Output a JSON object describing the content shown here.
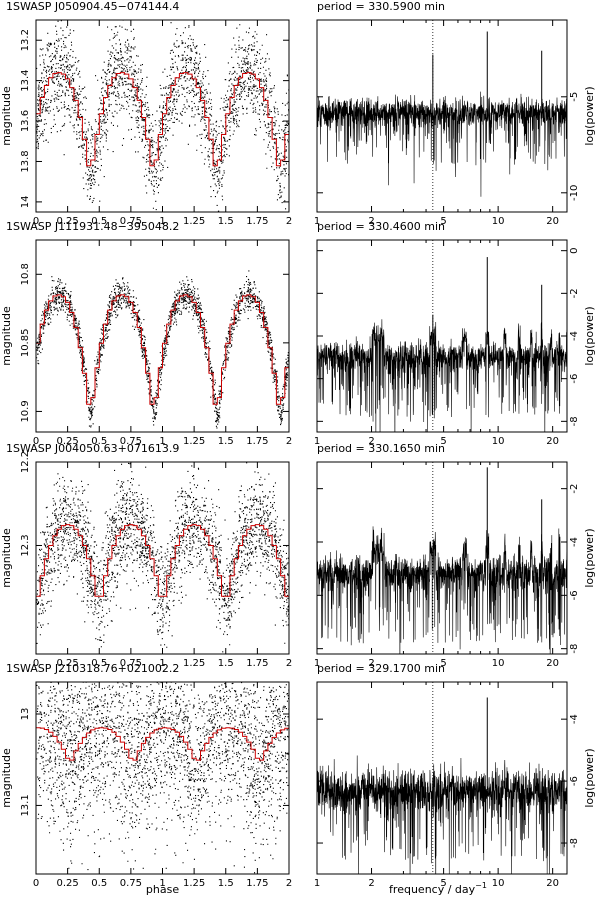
{
  "chart_data": [
    {
      "type": "scatter",
      "title": "1SWASP J050904.45−074144.4",
      "xlabel": "phase",
      "ylabel": "magnitude",
      "xlim": [
        0,
        2
      ],
      "ylim": [
        14.05,
        13.1
      ],
      "y_inverted": true,
      "xticks": [
        "0",
        "0.25",
        "0.5",
        "0.75",
        "1",
        "1.25",
        "1.5",
        "1.75",
        "2"
      ],
      "yticks": [
        13.2,
        13.4,
        13.6,
        13.8,
        14
      ],
      "cycles": 4,
      "minima_phases": [
        0.43,
        0.93,
        1.43,
        1.93
      ],
      "mean_curve": {
        "max_mag": 13.36,
        "min_mag": 13.88
      },
      "series": [
        {
          "values_description_free": true,
          "color": "#000000"
        },
        {
          "color": "#cc0000"
        }
      ],
      "scatter_sigma": 0.12,
      "points": 2600
    },
    {
      "type": "line",
      "title": "period = 330.5900 min",
      "xlabel": "frequency / day",
      "xlabel_sup": "−1",
      "ylabel": "log(power)",
      "xscale": "log",
      "xlim": [
        1,
        24
      ],
      "ylim": [
        -11,
        -1
      ],
      "xticks": [
        1,
        2,
        5,
        10,
        20
      ],
      "yticks": [
        -5,
        -10
      ],
      "dotted_line_x": 4.36,
      "spikes": [
        {
          "x": 8.71,
          "y": -1.6
        },
        {
          "x": 17.4,
          "y": -2.6
        },
        {
          "x": 4.36,
          "y": -2.8
        }
      ],
      "baseline": {
        "y": -5.8,
        "sigma": 0.35,
        "dips_to": -8.5
      },
      "comb": false
    },
    {
      "type": "scatter",
      "title": "1SWASP J111931.48−395048.2",
      "xlabel": "phase",
      "ylabel": "magnitude",
      "xlim": [
        0,
        2
      ],
      "ylim": [
        10.915,
        10.775
      ],
      "y_inverted": true,
      "xticks": [
        "0",
        "0.25",
        "0.5",
        "0.75",
        "1",
        "1.25",
        "1.5",
        "1.75",
        "2"
      ],
      "yticks": [
        10.8,
        10.85,
        10.9
      ],
      "cycles": 4,
      "minima_phases": [
        0.43,
        0.93,
        1.43,
        1.93
      ],
      "mean_curve": {
        "max_mag": 10.815,
        "min_mag": 10.905
      },
      "scatter_sigma": 0.006,
      "points": 2200
    },
    {
      "type": "line",
      "title": "period = 330.4600 min",
      "xlabel": "frequency / day",
      "xlabel_sup": "−1",
      "ylabel": "log(power)",
      "xscale": "log",
      "xlim": [
        1,
        24
      ],
      "ylim": [
        -8.5,
        0.5
      ],
      "xticks": [
        1,
        2,
        5,
        10,
        20
      ],
      "yticks": [
        0,
        -2,
        -4,
        -6,
        -8
      ],
      "dotted_line_x": 4.36,
      "spikes": [
        {
          "x": 8.71,
          "y": -0.3
        },
        {
          "x": 17.4,
          "y": -1.6
        },
        {
          "x": 4.36,
          "y": -3.0
        }
      ],
      "baseline": {
        "y": -4.4,
        "sigma": 0.3,
        "dips_to": -7.8
      },
      "comb": true
    },
    {
      "type": "scatter",
      "title": "1SWASP J004050.63+071613.9",
      "xlabel": "phase",
      "ylabel": "magnitude",
      "xlim": [
        0,
        2
      ],
      "ylim": [
        12.43,
        12.2
      ],
      "y_inverted": true,
      "xticks": [
        "0",
        "0.25",
        "0.5",
        "0.75",
        "1",
        "1.25",
        "1.5",
        "1.75",
        "2"
      ],
      "yticks": [
        12.2,
        12.3
      ],
      "cycles": 4,
      "minima_phases": [
        0.5,
        1.0,
        1.5,
        2.0
      ],
      "mean_curve": {
        "max_mag": 12.275,
        "min_mag": 12.375
      },
      "scatter_sigma": 0.03,
      "points": 2800
    },
    {
      "type": "line",
      "title": "period = 330.1650 min",
      "xlabel": "frequency / day",
      "xlabel_sup": "−1",
      "ylabel": "log(power)",
      "xscale": "log",
      "xlim": [
        1,
        24
      ],
      "ylim": [
        -8.2,
        -1.0
      ],
      "xticks": [
        1,
        2,
        5,
        10,
        20
      ],
      "yticks": [
        -2,
        -4,
        -6,
        -8
      ],
      "dotted_line_x": 4.36,
      "spikes": [
        {
          "x": 8.71,
          "y": -1.2
        },
        {
          "x": 17.4,
          "y": -2.4
        }
      ],
      "baseline": {
        "y": -4.6,
        "sigma": 0.3,
        "dips_to": -7.8
      },
      "comb": true
    },
    {
      "type": "scatter",
      "title": "1SWASP J210318.76+021002.2",
      "xlabel": "phase",
      "ylabel": "magnitude",
      "xlim": [
        0,
        2
      ],
      "ylim": [
        13.175,
        12.965
      ],
      "y_inverted": true,
      "xticks": [
        "0",
        "0.25",
        "0.5",
        "0.75",
        "1",
        "1.25",
        "1.5",
        "1.75",
        "2"
      ],
      "yticks": [
        13.0,
        13.1
      ],
      "ytick_labels": [
        "13",
        "13.1"
      ],
      "cycles": 4,
      "minima_phases": [
        0.27,
        0.77,
        1.27,
        1.77
      ],
      "mean_curve": {
        "max_mag": 13.015,
        "min_mag": 13.055
      },
      "scatter_sigma": 0.05,
      "points": 3200
    },
    {
      "type": "line",
      "title": "period = 329.1700 min",
      "xlabel": "frequency / day",
      "xlabel_sup": "−1",
      "ylabel": "log(power)",
      "xscale": "log",
      "xlim": [
        1,
        24
      ],
      "ylim": [
        -9.0,
        -2.8
      ],
      "xticks": [
        1,
        2,
        5,
        10,
        20
      ],
      "yticks": [
        -4,
        -6,
        -8
      ],
      "dotted_line_x": 4.36,
      "spikes": [
        {
          "x": 8.71,
          "y": -3.3
        }
      ],
      "baseline": {
        "y": -6.3,
        "sigma": 0.35,
        "dips_to": -8.6
      },
      "comb": false
    }
  ],
  "labels": {
    "phase": "phase",
    "frequency": "frequency / day",
    "frequency_sup": "−1"
  }
}
